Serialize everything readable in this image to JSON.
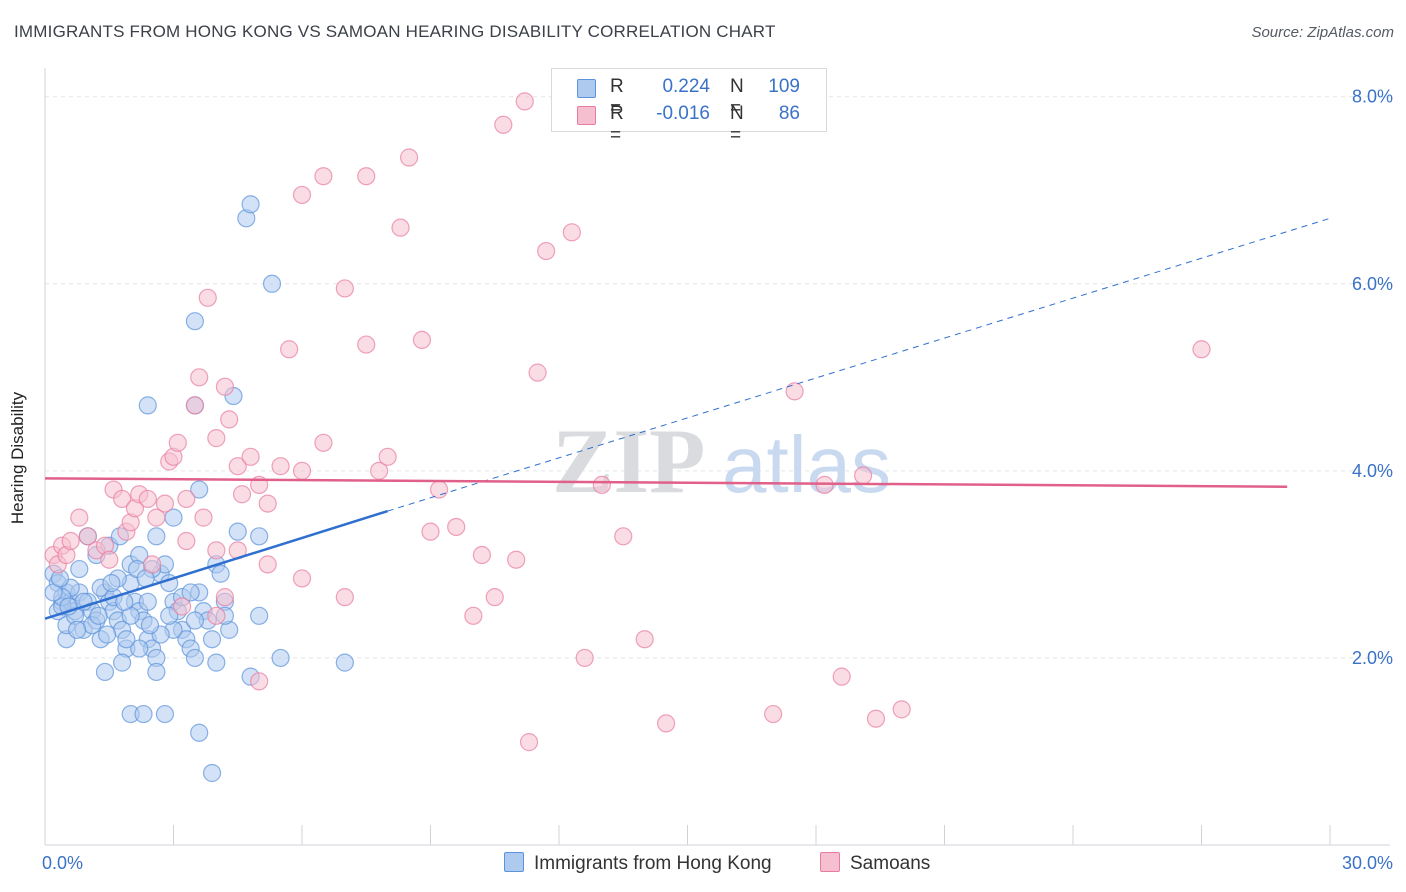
{
  "title": "IMMIGRANTS FROM HONG KONG VS SAMOAN HEARING DISABILITY CORRELATION CHART",
  "source": "Source: ZipAtlas.com",
  "watermark": {
    "zip": "ZIP",
    "atlas": "atlas"
  },
  "legend": {
    "rows": [
      {
        "r_label": "R =",
        "r_value": "0.224",
        "n_label": "N =",
        "n_value": "109",
        "color": "#aecbef"
      },
      {
        "r_label": "R =",
        "r_value": "-0.016",
        "n_label": "N =",
        "n_value": "86",
        "color": "#f6bfd0"
      }
    ]
  },
  "bottom_legend": [
    {
      "label": "Immigrants from Hong Kong",
      "color": "#aecbef"
    },
    {
      "label": "Samoans",
      "color": "#f6bfd0"
    }
  ],
  "chart_data": {
    "type": "scatter",
    "xlabel": "",
    "ylabel": "Hearing Disability",
    "xlim": [
      0,
      30
    ],
    "ylim": [
      0,
      8.2
    ],
    "x_tick_labels": [
      "0.0%",
      "30.0%"
    ],
    "y_ticks": [
      2,
      4,
      6,
      8
    ],
    "y_tick_labels": [
      "2.0%",
      "4.0%",
      "6.0%",
      "8.0%"
    ],
    "grid": true,
    "series": [
      {
        "name": "Immigrants from Hong Kong",
        "color": "#5b93dc",
        "fill": "#aecbef",
        "trend": {
          "x0": 0,
          "y0": 2.42,
          "x1": 8.0,
          "y1": 3.57,
          "dash_to_x": 30,
          "dash_to_y": 6.7,
          "color": "#2f6fd0"
        },
        "points": [
          [
            0.2,
            2.9
          ],
          [
            0.3,
            2.8
          ],
          [
            0.4,
            2.6
          ],
          [
            0.5,
            2.7
          ],
          [
            0.3,
            2.5
          ],
          [
            0.6,
            2.6
          ],
          [
            0.7,
            2.5
          ],
          [
            0.8,
            2.7
          ],
          [
            0.5,
            2.2
          ],
          [
            0.9,
            2.3
          ],
          [
            1.0,
            2.6
          ],
          [
            1.1,
            2.5
          ],
          [
            1.2,
            2.4
          ],
          [
            1.3,
            2.2
          ],
          [
            1.4,
            2.7
          ],
          [
            1.5,
            2.6
          ],
          [
            1.6,
            2.5
          ],
          [
            1.7,
            2.4
          ],
          [
            1.8,
            2.3
          ],
          [
            1.9,
            2.1
          ],
          [
            2.0,
            2.8
          ],
          [
            2.1,
            2.6
          ],
          [
            2.2,
            2.5
          ],
          [
            2.3,
            2.4
          ],
          [
            2.4,
            2.2
          ],
          [
            2.5,
            2.1
          ],
          [
            2.6,
            2.0
          ],
          [
            2.7,
            2.9
          ],
          [
            2.8,
            3.0
          ],
          [
            2.9,
            2.8
          ],
          [
            3.0,
            2.6
          ],
          [
            3.1,
            2.5
          ],
          [
            3.2,
            2.3
          ],
          [
            3.3,
            2.2
          ],
          [
            3.4,
            2.1
          ],
          [
            3.5,
            2.0
          ],
          [
            3.6,
            2.7
          ],
          [
            3.7,
            2.5
          ],
          [
            3.8,
            2.4
          ],
          [
            3.9,
            2.2
          ],
          [
            4.0,
            3.0
          ],
          [
            4.1,
            2.9
          ],
          [
            4.2,
            2.6
          ],
          [
            4.3,
            2.3
          ],
          [
            1.0,
            3.3
          ],
          [
            1.5,
            3.2
          ],
          [
            2.0,
            3.0
          ],
          [
            2.2,
            3.1
          ],
          [
            2.6,
            3.3
          ],
          [
            1.2,
            3.1
          ],
          [
            3.0,
            3.5
          ],
          [
            3.6,
            3.8
          ],
          [
            4.4,
            4.8
          ],
          [
            3.5,
            5.6
          ],
          [
            4.7,
            6.7
          ],
          [
            4.8,
            6.85
          ],
          [
            5.3,
            6.0
          ],
          [
            2.4,
            4.7
          ],
          [
            3.5,
            4.7
          ],
          [
            5.5,
            2.0
          ],
          [
            7.0,
            1.95
          ],
          [
            4.0,
            1.95
          ],
          [
            4.8,
            1.8
          ],
          [
            1.4,
            1.85
          ],
          [
            2.6,
            1.85
          ],
          [
            2.0,
            1.4
          ],
          [
            2.3,
            1.4
          ],
          [
            2.8,
            1.4
          ],
          [
            3.6,
            1.2
          ],
          [
            3.9,
            0.77
          ],
          [
            4.5,
            3.35
          ],
          [
            5.0,
            3.3
          ],
          [
            5.0,
            2.45
          ],
          [
            4.2,
            2.45
          ],
          [
            3.5,
            2.4
          ],
          [
            3.0,
            2.3
          ],
          [
            2.7,
            2.25
          ],
          [
            2.2,
            2.1
          ],
          [
            1.8,
            1.95
          ],
          [
            0.4,
            2.55
          ],
          [
            0.6,
            2.75
          ],
          [
            0.8,
            2.95
          ],
          [
            1.3,
            2.75
          ],
          [
            1.7,
            2.85
          ],
          [
            2.5,
            2.95
          ],
          [
            3.2,
            2.65
          ],
          [
            0.4,
            2.65
          ],
          [
            0.5,
            2.35
          ],
          [
            0.7,
            2.45
          ],
          [
            0.9,
            2.6
          ],
          [
            1.1,
            2.35
          ],
          [
            1.6,
            2.65
          ],
          [
            2.0,
            2.45
          ],
          [
            2.4,
            2.6
          ],
          [
            3.4,
            2.7
          ],
          [
            1.9,
            2.2
          ],
          [
            2.9,
            2.45
          ],
          [
            0.2,
            2.7
          ],
          [
            0.35,
            2.85
          ],
          [
            0.55,
            2.55
          ],
          [
            0.75,
            2.3
          ],
          [
            1.25,
            2.45
          ],
          [
            1.45,
            2.25
          ],
          [
            1.75,
            3.3
          ],
          [
            2.15,
            2.95
          ],
          [
            2.35,
            2.85
          ],
          [
            1.55,
            2.8
          ],
          [
            1.85,
            2.6
          ],
          [
            2.45,
            2.35
          ]
        ]
      },
      {
        "name": "Samoans",
        "color": "#e87ca0",
        "fill": "#f6bfd0",
        "trend": {
          "x0": 0,
          "y0": 3.92,
          "x1": 29.0,
          "y1": 3.83,
          "color": "#e0608a"
        },
        "points": [
          [
            0.2,
            3.1
          ],
          [
            0.3,
            3.0
          ],
          [
            0.4,
            3.2
          ],
          [
            0.5,
            3.1
          ],
          [
            0.6,
            3.25
          ],
          [
            0.8,
            3.5
          ],
          [
            1.0,
            3.3
          ],
          [
            1.2,
            3.15
          ],
          [
            1.4,
            3.2
          ],
          [
            1.6,
            3.8
          ],
          [
            1.8,
            3.7
          ],
          [
            1.9,
            3.35
          ],
          [
            2.0,
            3.45
          ],
          [
            2.1,
            3.6
          ],
          [
            2.2,
            3.75
          ],
          [
            2.4,
            3.7
          ],
          [
            2.6,
            3.5
          ],
          [
            2.8,
            3.65
          ],
          [
            2.9,
            4.1
          ],
          [
            3.0,
            4.15
          ],
          [
            3.1,
            4.3
          ],
          [
            3.3,
            3.7
          ],
          [
            3.5,
            4.7
          ],
          [
            3.6,
            5.0
          ],
          [
            3.8,
            5.85
          ],
          [
            4.0,
            4.35
          ],
          [
            4.2,
            4.9
          ],
          [
            4.3,
            4.55
          ],
          [
            4.5,
            4.05
          ],
          [
            4.6,
            3.75
          ],
          [
            4.8,
            4.15
          ],
          [
            5.0,
            3.85
          ],
          [
            5.2,
            3.65
          ],
          [
            5.5,
            4.05
          ],
          [
            5.7,
            5.3
          ],
          [
            6.0,
            4.0
          ],
          [
            6.5,
            4.3
          ],
          [
            7.0,
            5.95
          ],
          [
            7.5,
            5.35
          ],
          [
            7.8,
            4.0
          ],
          [
            8.0,
            4.15
          ],
          [
            8.3,
            6.6
          ],
          [
            8.5,
            7.35
          ],
          [
            8.8,
            5.4
          ],
          [
            9.2,
            3.8
          ],
          [
            9.6,
            3.4
          ],
          [
            10.2,
            3.1
          ],
          [
            11.5,
            5.05
          ],
          [
            11.7,
            6.35
          ],
          [
            12.3,
            6.55
          ],
          [
            13.0,
            3.85
          ],
          [
            13.5,
            3.3
          ],
          [
            14.0,
            2.2
          ],
          [
            10.7,
            7.7
          ],
          [
            11.2,
            7.95
          ],
          [
            7.5,
            7.15
          ],
          [
            6.5,
            7.15
          ],
          [
            6.0,
            6.95
          ],
          [
            5.0,
            1.75
          ],
          [
            4.0,
            2.45
          ],
          [
            4.2,
            2.65
          ],
          [
            3.2,
            2.55
          ],
          [
            4.5,
            3.15
          ],
          [
            3.7,
            3.5
          ],
          [
            6.0,
            2.85
          ],
          [
            7.0,
            2.65
          ],
          [
            9.0,
            3.35
          ],
          [
            10.0,
            2.45
          ],
          [
            10.5,
            2.65
          ],
          [
            11.0,
            3.05
          ],
          [
            12.6,
            2.0
          ],
          [
            14.5,
            1.3
          ],
          [
            17.0,
            1.4
          ],
          [
            18.6,
            1.8
          ],
          [
            19.4,
            1.35
          ],
          [
            20.0,
            1.45
          ],
          [
            11.3,
            1.1
          ],
          [
            18.2,
            3.85
          ],
          [
            19.1,
            3.95
          ],
          [
            17.5,
            4.85
          ],
          [
            27.0,
            5.3
          ],
          [
            5.2,
            3.0
          ],
          [
            4.0,
            3.15
          ],
          [
            3.3,
            3.25
          ],
          [
            2.5,
            3.0
          ],
          [
            1.5,
            3.05
          ]
        ]
      }
    ]
  }
}
